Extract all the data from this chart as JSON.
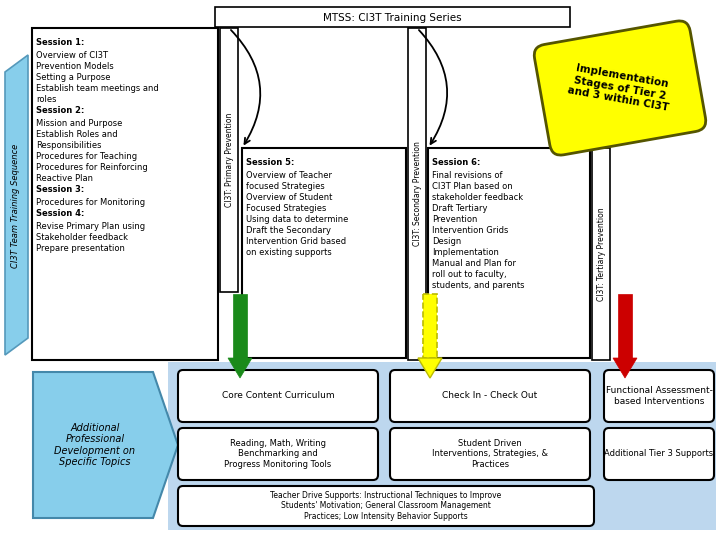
{
  "title": "MTSS: CI3T Training Series",
  "background_color": "#ffffff",
  "yellow_badge_color": "#FFFF00",
  "yellow_badge_text": "Implementation\nStages of Tier 2\nand 3 within CI3T",
  "left_arrow_label": "CI3T Team Training Sequence",
  "session1_lines": [
    "Session 1:",
    "Overview of CI3T",
    "Prevention Models",
    "Setting a Purpose",
    "Establish team meetings and",
    "roles",
    "Session 2:",
    "Mission and Purpose",
    "Establish Roles and",
    "Responsibilities",
    "Procedures for Teaching",
    "Procedures for Reinforcing",
    "Reactive Plan",
    "Session 3:",
    "Procedures for Monitoring",
    "Session 4:",
    "Revise Primary Plan using",
    "Stakeholder feedback",
    "Prepare presentation"
  ],
  "session1_bold": [
    "Session 1:",
    "Session 2:",
    "Session 3:",
    "Session 4:"
  ],
  "primary_label": "CI3T: Primary Prevention",
  "session5_lines": [
    "Session 5:",
    "Overview of Teacher",
    "focused Strategies",
    "Overview of Student",
    "Focused Strategies",
    "Using data to determine",
    "Draft the Secondary",
    "Intervention Grid based",
    "on existing supports"
  ],
  "session5_bold": [
    "Session 5:"
  ],
  "secondary_label": "CI3T: Secondary Prevention",
  "session6_lines": [
    "Session 6:",
    "Final revisions of",
    "CI3T Plan based on",
    "stakeholder feedback",
    "Draft Tertiary",
    "Prevention",
    "Intervention Grids",
    "Design",
    "Implementation",
    "Manual and Plan for",
    "roll out to faculty,",
    "students, and parents"
  ],
  "session6_bold": [
    "Session 6:"
  ],
  "tertiary_label": "CI3T: Tertiary Prevention",
  "bottom_boxes_row1": [
    "Core Content Curriculum",
    "Check In - Check Out",
    "Functional Assessment-\nbased Interventions"
  ],
  "bottom_boxes_row2": [
    "Reading, Math, Writing\nBenchmarking and\nProgress Monitoring Tools",
    "Student Driven\nInterventions, Strategies, &\nPractices",
    "Additional Tier 3 Supports"
  ],
  "bottom_wide_box": "Teacher Drive Supports: Instructional Techniques to Improve\nStudents' Motivation; General Classroom Management\nPractices; Low Intensity Behavior Supports",
  "additional_text": "Additional\nProfessional\nDevelopment on\nSpecific Topics"
}
